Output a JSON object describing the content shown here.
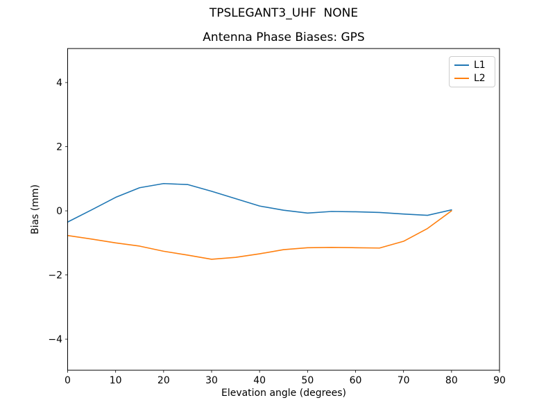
{
  "figure": {
    "title": "TPSLEGANT3_UHF  NONE",
    "subtitle": "Antenna Phase Biases: GPS"
  },
  "chart_data": {
    "type": "line",
    "title": "TPSLEGANT3_UHF  NONE",
    "subtitle": "Antenna Phase Biases: GPS",
    "xlabel": "Elevation angle (degrees)",
    "ylabel": "Bias (mm)",
    "xlim": [
      0,
      90
    ],
    "ylim": [
      -4.97,
      5.06
    ],
    "xticks": [
      0,
      10,
      20,
      30,
      40,
      50,
      60,
      70,
      80,
      90
    ],
    "yticks": [
      -4,
      -2,
      0,
      2,
      4
    ],
    "grid": false,
    "legend_position": "upper right",
    "x": [
      0,
      5,
      10,
      15,
      20,
      25,
      30,
      35,
      40,
      45,
      50,
      55,
      60,
      65,
      70,
      75,
      80
    ],
    "series": [
      {
        "name": "L1",
        "color": "#1f77b4",
        "values": [
          -0.35,
          0.03,
          0.42,
          0.72,
          0.85,
          0.82,
          0.61,
          0.38,
          0.15,
          0.02,
          -0.07,
          -0.02,
          -0.03,
          -0.05,
          -0.1,
          -0.14,
          0.03
        ]
      },
      {
        "name": "L2",
        "color": "#ff7f0e",
        "values": [
          -0.77,
          -0.88,
          -1.0,
          -1.1,
          -1.26,
          -1.38,
          -1.51,
          -1.45,
          -1.34,
          -1.21,
          -1.15,
          -1.14,
          -1.15,
          -1.16,
          -0.95,
          -0.55,
          0.0
        ]
      }
    ]
  }
}
